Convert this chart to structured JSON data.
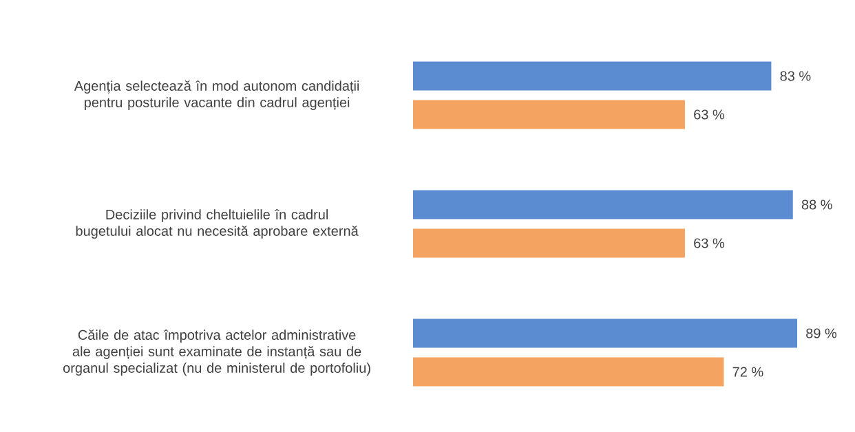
{
  "chart_data": {
    "type": "bar",
    "orientation": "horizontal",
    "categories": [
      "Agenția selectează în mod autonom candidații pentru posturile vacante din cadrul agenției",
      "Deciziile privind cheltuielile în cadrul bugetului alocat nu necesită aprobare externă",
      "Căile de atac împotriva actelor administrative ale agenției sunt examinate de instanță sau de organul specializat (nu de ministerul de portofoliu)"
    ],
    "series": [
      {
        "color": "#5b8bd0",
        "values": [
          83,
          88,
          89
        ],
        "value_labels": [
          "83 %",
          "88 %",
          "89 %"
        ]
      },
      {
        "color": "#f4a460",
        "values": [
          63,
          63,
          72
        ],
        "value_labels": [
          "63 %",
          "63 %",
          "72 %"
        ]
      }
    ]
  }
}
